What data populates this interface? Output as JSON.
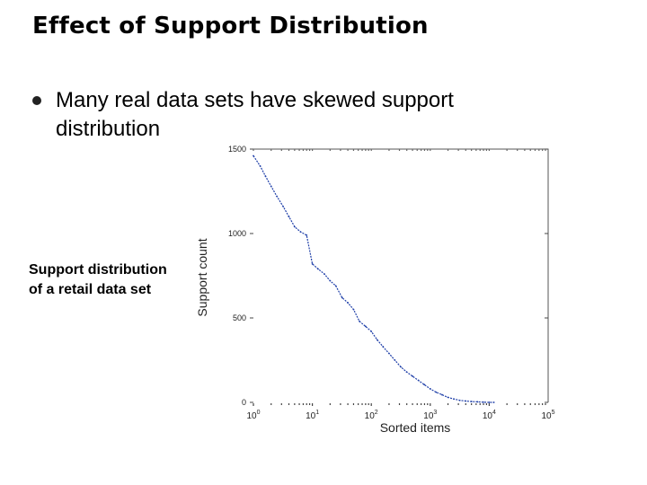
{
  "slide": {
    "title": "Effect of Support Distribution",
    "bullet": "Many real data sets have skewed support distribution",
    "caption": "Support distribution of a retail data set"
  },
  "chart_data": {
    "type": "line",
    "xscale": "log",
    "xlabel": "Sorted items",
    "ylabel": "Support count",
    "xlim": [
      1,
      100000
    ],
    "ylim": [
      0,
      1500
    ],
    "y_ticks": [
      0,
      500,
      1000,
      1500
    ],
    "x_ticks": [
      {
        "base": "10",
        "exp": "0",
        "value": 1
      },
      {
        "base": "10",
        "exp": "1",
        "value": 10
      },
      {
        "base": "10",
        "exp": "2",
        "value": 100
      },
      {
        "base": "10",
        "exp": "3",
        "value": 1000
      },
      {
        "base": "10",
        "exp": "4",
        "value": 10000
      },
      {
        "base": "10",
        "exp": "5",
        "value": 100000
      }
    ],
    "color": "#1f3fa8",
    "series": [
      {
        "x": [
          1,
          1.3,
          1.6,
          2,
          2.5,
          3.2,
          4,
          5,
          6.3,
          8,
          10,
          12.5,
          16,
          20,
          25,
          32,
          40,
          50,
          63,
          80,
          100,
          126,
          158,
          200,
          251,
          316,
          398,
          501,
          631,
          794,
          1000,
          1259,
          1585,
          1995,
          2512,
          3162,
          3981,
          5012,
          6310,
          7943,
          10000,
          12000
        ],
        "y": [
          1460,
          1400,
          1340,
          1280,
          1220,
          1160,
          1100,
          1040,
          1010,
          990,
          820,
          790,
          760,
          720,
          690,
          620,
          590,
          550,
          480,
          450,
          420,
          370,
          330,
          290,
          250,
          210,
          180,
          155,
          130,
          105,
          80,
          60,
          45,
          30,
          20,
          12,
          8,
          5,
          3,
          1,
          0,
          0
        ]
      }
    ]
  }
}
